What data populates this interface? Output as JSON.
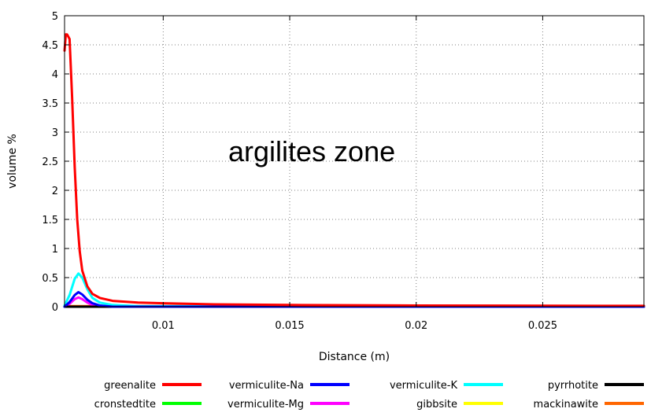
{
  "chart_data": {
    "type": "line",
    "xlabel": "Distance (m)",
    "ylabel": "volume %",
    "xlim": [
      0.0061,
      0.029
    ],
    "ylim": [
      0,
      5
    ],
    "xticks": [
      0.01,
      0.015,
      0.02,
      0.025
    ],
    "xtick_labels": [
      "0.01",
      "0.015",
      "0.02",
      "0.025"
    ],
    "yticks": [
      0,
      0.5,
      1,
      1.5,
      2,
      2.5,
      3,
      3.5,
      4,
      4.5,
      5
    ],
    "ytick_labels": [
      "0",
      "0.5",
      "1",
      "1.5",
      "2",
      "2.5",
      "3",
      "3.5",
      "4",
      "4.5",
      "5"
    ],
    "grid": true,
    "legend_position": "bottom",
    "annotation": "argilites zone",
    "series": [
      {
        "name": "greenalite",
        "color": "#ff0000",
        "x": [
          0.0061,
          0.00615,
          0.0062,
          0.0063,
          0.0064,
          0.0065,
          0.0066,
          0.0067,
          0.0068,
          0.007,
          0.0072,
          0.0075,
          0.008,
          0.009,
          0.01,
          0.012,
          0.015,
          0.02,
          0.029
        ],
        "y": [
          4.4,
          4.68,
          4.68,
          4.6,
          3.6,
          2.4,
          1.5,
          0.95,
          0.62,
          0.35,
          0.22,
          0.15,
          0.1,
          0.07,
          0.06,
          0.04,
          0.03,
          0.02,
          0.015
        ]
      },
      {
        "name": "vermiculite-Na",
        "color": "#0000ff",
        "x": [
          0.0061,
          0.0063,
          0.0065,
          0.00665,
          0.0068,
          0.007,
          0.0072,
          0.0075,
          0.008,
          0.029
        ],
        "y": [
          0.0,
          0.08,
          0.2,
          0.25,
          0.21,
          0.12,
          0.06,
          0.02,
          0.0,
          0.0
        ]
      },
      {
        "name": "vermiculite-K",
        "color": "#00ffff",
        "x": [
          0.0061,
          0.0063,
          0.0065,
          0.00665,
          0.0068,
          0.007,
          0.0072,
          0.0075,
          0.008,
          0.009,
          0.029
        ],
        "y": [
          0.02,
          0.2,
          0.48,
          0.57,
          0.5,
          0.3,
          0.15,
          0.07,
          0.03,
          0.01,
          0.0
        ]
      },
      {
        "name": "pyrrhotite",
        "color": "#000000",
        "x": [
          0.0061,
          0.029
        ],
        "y": [
          0.0,
          0.0
        ]
      },
      {
        "name": "cronstedtite",
        "color": "#00ff00",
        "x": [
          0.0061,
          0.029
        ],
        "y": [
          0.0,
          0.0
        ]
      },
      {
        "name": "vermiculite-Mg",
        "color": "#ff00ff",
        "x": [
          0.0061,
          0.0063,
          0.0065,
          0.00665,
          0.0068,
          0.007,
          0.0072,
          0.0075,
          0.029
        ],
        "y": [
          0.0,
          0.05,
          0.13,
          0.16,
          0.13,
          0.07,
          0.03,
          0.0,
          0.0
        ]
      },
      {
        "name": "gibbsite",
        "color": "#ffff00",
        "x": [
          0.0061,
          0.029
        ],
        "y": [
          0.0,
          0.0
        ]
      },
      {
        "name": "mackinawite",
        "color": "#ff6600",
        "x": [
          0.0061,
          0.01,
          0.015,
          0.02,
          0.029
        ],
        "y": [
          0.01,
          0.01,
          0.01,
          0.005,
          0.005
        ]
      }
    ]
  }
}
